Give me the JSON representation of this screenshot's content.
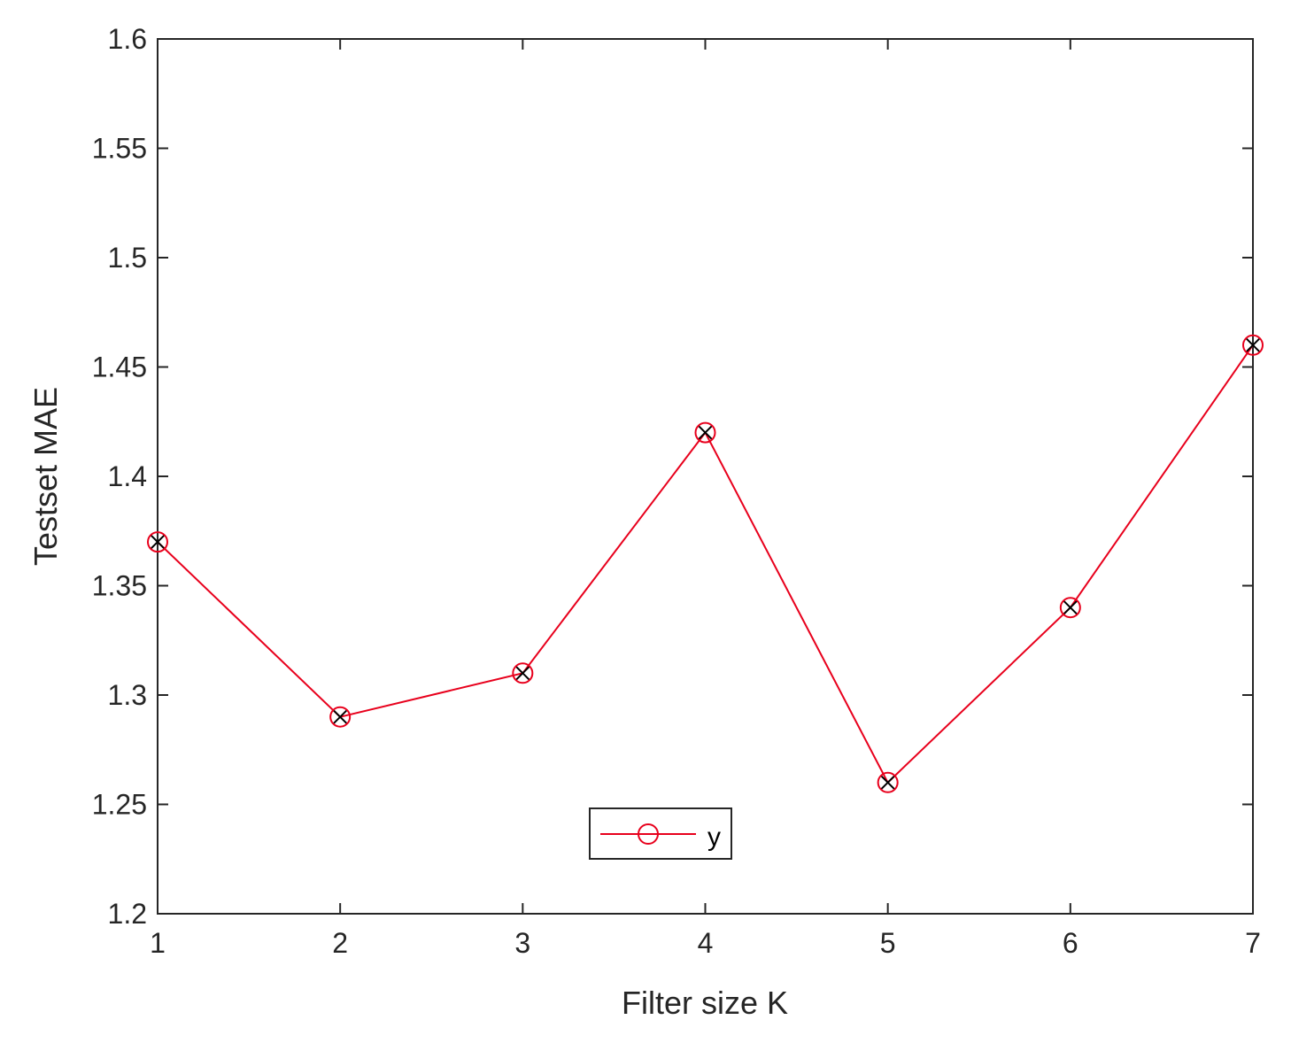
{
  "chart_data": {
    "type": "line",
    "title": "",
    "xlabel": "Filter size K",
    "ylabel": "Testset MAE",
    "x": [
      1,
      2,
      3,
      4,
      5,
      6,
      7
    ],
    "xlim": [
      1,
      7
    ],
    "ylim": [
      1.2,
      1.6
    ],
    "x_ticks": [
      1,
      2,
      3,
      4,
      5,
      6,
      7
    ],
    "x_tick_labels": [
      "1",
      "2",
      "3",
      "4",
      "5",
      "6",
      "7"
    ],
    "y_ticks": [
      1.2,
      1.25,
      1.3,
      1.35,
      1.4,
      1.45,
      1.5,
      1.55,
      1.6
    ],
    "y_tick_labels": [
      "1.2",
      "1.25",
      "1.3",
      "1.35",
      "1.4",
      "1.45",
      "1.5",
      "1.55",
      "1.6"
    ],
    "grid": false,
    "legend_position": "bottom-center",
    "series": [
      {
        "name": "y",
        "values": [
          1.37,
          1.29,
          1.31,
          1.42,
          1.26,
          1.34,
          1.46
        ],
        "color": "#e8001c",
        "marker": "circle",
        "marker_overlay": "x",
        "marker_overlay_color": "#000000"
      }
    ]
  }
}
